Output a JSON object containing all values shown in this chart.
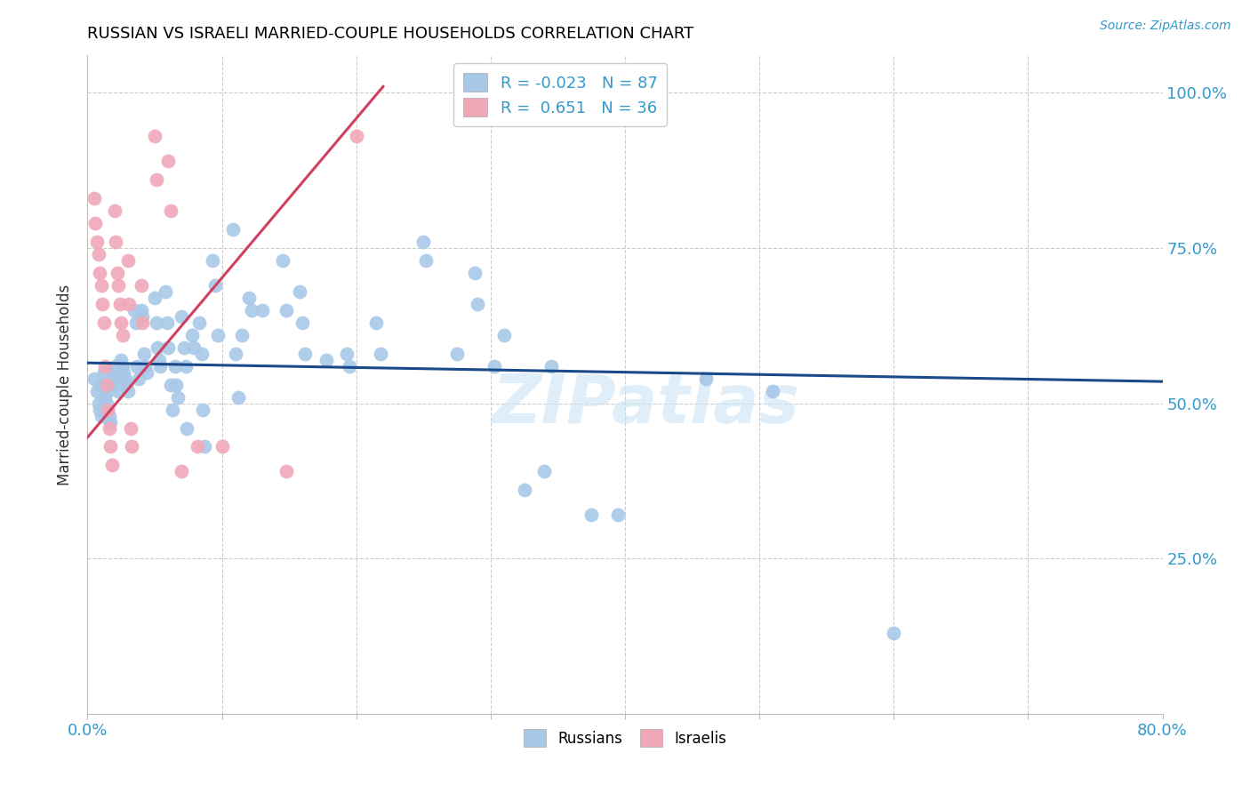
{
  "title": "RUSSIAN VS ISRAELI MARRIED-COUPLE HOUSEHOLDS CORRELATION CHART",
  "source": "Source: ZipAtlas.com",
  "ylabel": "Married-couple Households",
  "watermark": "ZIPatlas",
  "blue_color": "#a8c8e8",
  "pink_color": "#f0a8b8",
  "blue_line_color": "#1a4a8a",
  "pink_line_color": "#d04060",
  "blue_scatter": [
    [
      0.005,
      0.54
    ],
    [
      0.007,
      0.52
    ],
    [
      0.008,
      0.5
    ],
    [
      0.009,
      0.49
    ],
    [
      0.01,
      0.48
    ],
    [
      0.01,
      0.53
    ],
    [
      0.012,
      0.55
    ],
    [
      0.013,
      0.51
    ],
    [
      0.014,
      0.5
    ],
    [
      0.015,
      0.52
    ],
    [
      0.015,
      0.49
    ],
    [
      0.016,
      0.48
    ],
    [
      0.017,
      0.47
    ],
    [
      0.018,
      0.54
    ],
    [
      0.019,
      0.53
    ],
    [
      0.02,
      0.56
    ],
    [
      0.021,
      0.55
    ],
    [
      0.022,
      0.54
    ],
    [
      0.023,
      0.52
    ],
    [
      0.025,
      0.57
    ],
    [
      0.026,
      0.56
    ],
    [
      0.027,
      0.55
    ],
    [
      0.028,
      0.54
    ],
    [
      0.029,
      0.53
    ],
    [
      0.03,
      0.52
    ],
    [
      0.035,
      0.65
    ],
    [
      0.036,
      0.63
    ],
    [
      0.037,
      0.56
    ],
    [
      0.038,
      0.54
    ],
    [
      0.04,
      0.65
    ],
    [
      0.041,
      0.64
    ],
    [
      0.042,
      0.58
    ],
    [
      0.043,
      0.56
    ],
    [
      0.044,
      0.55
    ],
    [
      0.05,
      0.67
    ],
    [
      0.051,
      0.63
    ],
    [
      0.052,
      0.59
    ],
    [
      0.053,
      0.57
    ],
    [
      0.054,
      0.56
    ],
    [
      0.058,
      0.68
    ],
    [
      0.059,
      0.63
    ],
    [
      0.06,
      0.59
    ],
    [
      0.062,
      0.53
    ],
    [
      0.063,
      0.49
    ],
    [
      0.065,
      0.56
    ],
    [
      0.066,
      0.53
    ],
    [
      0.067,
      0.51
    ],
    [
      0.07,
      0.64
    ],
    [
      0.072,
      0.59
    ],
    [
      0.073,
      0.56
    ],
    [
      0.074,
      0.46
    ],
    [
      0.078,
      0.61
    ],
    [
      0.079,
      0.59
    ],
    [
      0.083,
      0.63
    ],
    [
      0.085,
      0.58
    ],
    [
      0.086,
      0.49
    ],
    [
      0.087,
      0.43
    ],
    [
      0.093,
      0.73
    ],
    [
      0.095,
      0.69
    ],
    [
      0.097,
      0.61
    ],
    [
      0.108,
      0.78
    ],
    [
      0.11,
      0.58
    ],
    [
      0.112,
      0.51
    ],
    [
      0.115,
      0.61
    ],
    [
      0.12,
      0.67
    ],
    [
      0.122,
      0.65
    ],
    [
      0.13,
      0.65
    ],
    [
      0.145,
      0.73
    ],
    [
      0.148,
      0.65
    ],
    [
      0.158,
      0.68
    ],
    [
      0.16,
      0.63
    ],
    [
      0.162,
      0.58
    ],
    [
      0.178,
      0.57
    ],
    [
      0.193,
      0.58
    ],
    [
      0.195,
      0.56
    ],
    [
      0.215,
      0.63
    ],
    [
      0.218,
      0.58
    ],
    [
      0.25,
      0.76
    ],
    [
      0.252,
      0.73
    ],
    [
      0.275,
      0.58
    ],
    [
      0.288,
      0.71
    ],
    [
      0.29,
      0.66
    ],
    [
      0.303,
      0.56
    ],
    [
      0.31,
      0.61
    ],
    [
      0.325,
      0.36
    ],
    [
      0.34,
      0.39
    ],
    [
      0.345,
      0.56
    ],
    [
      0.375,
      0.32
    ],
    [
      0.395,
      0.32
    ],
    [
      0.46,
      0.54
    ],
    [
      0.51,
      0.52
    ],
    [
      0.6,
      0.13
    ]
  ],
  "pink_scatter": [
    [
      0.005,
      0.83
    ],
    [
      0.006,
      0.79
    ],
    [
      0.007,
      0.76
    ],
    [
      0.008,
      0.74
    ],
    [
      0.009,
      0.71
    ],
    [
      0.01,
      0.69
    ],
    [
      0.011,
      0.66
    ],
    [
      0.012,
      0.63
    ],
    [
      0.013,
      0.56
    ],
    [
      0.014,
      0.53
    ],
    [
      0.015,
      0.49
    ],
    [
      0.016,
      0.46
    ],
    [
      0.017,
      0.43
    ],
    [
      0.018,
      0.4
    ],
    [
      0.02,
      0.81
    ],
    [
      0.021,
      0.76
    ],
    [
      0.022,
      0.71
    ],
    [
      0.023,
      0.69
    ],
    [
      0.024,
      0.66
    ],
    [
      0.025,
      0.63
    ],
    [
      0.026,
      0.61
    ],
    [
      0.03,
      0.73
    ],
    [
      0.031,
      0.66
    ],
    [
      0.032,
      0.46
    ],
    [
      0.033,
      0.43
    ],
    [
      0.04,
      0.69
    ],
    [
      0.041,
      0.63
    ],
    [
      0.05,
      0.93
    ],
    [
      0.051,
      0.86
    ],
    [
      0.06,
      0.89
    ],
    [
      0.062,
      0.81
    ],
    [
      0.07,
      0.39
    ],
    [
      0.082,
      0.43
    ],
    [
      0.1,
      0.43
    ],
    [
      0.148,
      0.39
    ],
    [
      0.2,
      0.93
    ]
  ],
  "xmin": 0.0,
  "xmax": 0.8,
  "ymin": 0.0,
  "ymax": 1.06,
  "blue_line_x0": 0.0,
  "blue_line_x1": 0.8,
  "blue_line_y0": 0.565,
  "blue_line_y1": 0.535,
  "pink_line_x0": 0.0,
  "pink_line_x1": 0.22,
  "pink_line_y0": 0.445,
  "pink_line_y1": 1.01
}
